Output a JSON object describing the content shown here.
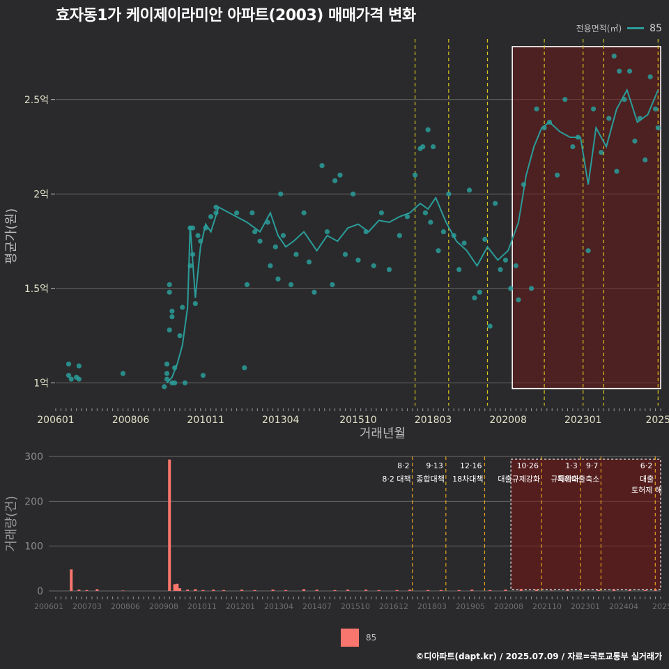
{
  "title": "효자동1가 케이제이라미안 아파트(2003) 매매가격 변화",
  "legend_top": {
    "label": "전용면적(㎡)",
    "value": "85",
    "color": "#2a9d9a"
  },
  "legend_bottom": {
    "value": "85",
    "color": "#f8766d"
  },
  "footer": "©디아파트(dapt.kr) / 2025.07.09 / 자료=국토교통부 실거래가",
  "chart_data": [
    {
      "type": "line",
      "name": "price",
      "xlabel": "거래년월",
      "ylabel": "평균가(원)",
      "x_range": [
        "2006-01",
        "2025-07"
      ],
      "ylim": [
        0.88,
        2.82
      ],
      "y_ticks": [
        {
          "v": 1.0,
          "label": "1억"
        },
        {
          "v": 1.5,
          "label": "1.5억"
        },
        {
          "v": 2.0,
          "label": "2억"
        },
        {
          "v": 2.5,
          "label": "2.5억"
        }
      ],
      "x_ticks": [
        {
          "d": "2006-01",
          "label": "200601"
        },
        {
          "d": "2008-06",
          "label": "200806"
        },
        {
          "d": "2010-11",
          "label": "201011"
        },
        {
          "d": "2013-04",
          "label": "201304"
        },
        {
          "d": "2015-10",
          "label": "201510"
        },
        {
          "d": "2018-03",
          "label": "201803"
        },
        {
          "d": "2020-08",
          "label": "202008"
        },
        {
          "d": "2023-01",
          "label": "202301"
        },
        {
          "d": "2025-06",
          "label": "2025"
        }
      ],
      "highlight_box": {
        "from": "2020-08",
        "to": "2025-07",
        "ymin": 0.97,
        "ymax": 2.78
      },
      "line_points": [
        [
          "2009-08",
          1.0
        ],
        [
          "2009-10",
          1.03
        ],
        [
          "2009-12",
          1.1
        ],
        [
          "2010-02",
          1.2
        ],
        [
          "2010-04",
          1.4
        ],
        [
          "2010-05",
          1.83
        ],
        [
          "2010-07",
          1.45
        ],
        [
          "2010-09",
          1.72
        ],
        [
          "2010-11",
          1.84
        ],
        [
          "2011-01",
          1.8
        ],
        [
          "2011-04",
          1.93
        ],
        [
          "2012-03",
          1.85
        ],
        [
          "2012-08",
          1.8
        ],
        [
          "2012-12",
          1.9
        ],
        [
          "2013-03",
          1.78
        ],
        [
          "2013-06",
          1.72
        ],
        [
          "2013-09",
          1.75
        ],
        [
          "2014-01",
          1.8
        ],
        [
          "2014-06",
          1.7
        ],
        [
          "2014-10",
          1.78
        ],
        [
          "2015-02",
          1.75
        ],
        [
          "2015-06",
          1.82
        ],
        [
          "2015-10",
          1.84
        ],
        [
          "2016-02",
          1.8
        ],
        [
          "2016-06",
          1.86
        ],
        [
          "2016-10",
          1.85
        ],
        [
          "2017-02",
          1.88
        ],
        [
          "2017-06",
          1.9
        ],
        [
          "2017-10",
          1.95
        ],
        [
          "2018-01",
          1.92
        ],
        [
          "2018-04",
          1.98
        ],
        [
          "2018-08",
          1.85
        ],
        [
          "2018-12",
          1.75
        ],
        [
          "2019-04",
          1.7
        ],
        [
          "2019-08",
          1.62
        ],
        [
          "2019-12",
          1.72
        ],
        [
          "2020-04",
          1.65
        ],
        [
          "2020-08",
          1.7
        ],
        [
          "2020-12",
          1.85
        ],
        [
          "2021-03",
          2.1
        ],
        [
          "2021-06",
          2.25
        ],
        [
          "2021-09",
          2.35
        ],
        [
          "2021-12",
          2.38
        ],
        [
          "2022-04",
          2.33
        ],
        [
          "2022-08",
          2.3
        ],
        [
          "2022-12",
          2.3
        ],
        [
          "2023-03",
          2.05
        ],
        [
          "2023-06",
          2.35
        ],
        [
          "2023-10",
          2.25
        ],
        [
          "2024-02",
          2.45
        ],
        [
          "2024-06",
          2.55
        ],
        [
          "2024-10",
          2.38
        ],
        [
          "2025-02",
          2.42
        ],
        [
          "2025-06",
          2.55
        ]
      ],
      "scatter_points": [
        [
          "2006-06",
          1.1
        ],
        [
          "2006-06",
          1.04
        ],
        [
          "2006-07",
          1.02
        ],
        [
          "2006-09",
          1.03
        ],
        [
          "2006-10",
          1.09
        ],
        [
          "2006-10",
          1.02
        ],
        [
          "2008-03",
          1.05
        ],
        [
          "2009-07",
          0.98
        ],
        [
          "2009-08",
          1.05
        ],
        [
          "2009-08",
          1.02
        ],
        [
          "2009-08",
          1.1
        ],
        [
          "2009-09",
          1.28
        ],
        [
          "2009-09",
          1.48
        ],
        [
          "2009-09",
          1.52
        ],
        [
          "2009-10",
          1.35
        ],
        [
          "2009-10",
          1.38
        ],
        [
          "2009-10",
          1.0
        ],
        [
          "2009-11",
          1.0
        ],
        [
          "2009-11",
          1.08
        ],
        [
          "2010-01",
          1.25
        ],
        [
          "2010-02",
          1.4
        ],
        [
          "2010-03",
          1.0
        ],
        [
          "2010-05",
          1.82
        ],
        [
          "2010-05",
          1.62
        ],
        [
          "2010-06",
          1.82
        ],
        [
          "2010-06",
          1.68
        ],
        [
          "2010-07",
          1.42
        ],
        [
          "2010-08",
          1.78
        ],
        [
          "2010-09",
          1.75
        ],
        [
          "2010-10",
          1.04
        ],
        [
          "2010-11",
          1.82
        ],
        [
          "2011-01",
          1.88
        ],
        [
          "2011-03",
          1.93
        ],
        [
          "2011-03",
          1.9
        ],
        [
          "2011-11",
          1.9
        ],
        [
          "2012-02",
          1.08
        ],
        [
          "2012-03",
          1.52
        ],
        [
          "2012-05",
          1.9
        ],
        [
          "2012-06",
          1.8
        ],
        [
          "2012-08",
          1.75
        ],
        [
          "2012-11",
          1.85
        ],
        [
          "2012-12",
          1.62
        ],
        [
          "2013-02",
          1.72
        ],
        [
          "2013-03",
          1.55
        ],
        [
          "2013-04",
          2.0
        ],
        [
          "2013-05",
          1.78
        ],
        [
          "2013-08",
          1.52
        ],
        [
          "2013-10",
          1.68
        ],
        [
          "2014-01",
          1.9
        ],
        [
          "2014-03",
          1.64
        ],
        [
          "2014-05",
          1.48
        ],
        [
          "2014-08",
          2.15
        ],
        [
          "2014-10",
          1.8
        ],
        [
          "2014-12",
          1.52
        ],
        [
          "2015-01",
          2.07
        ],
        [
          "2015-03",
          2.1
        ],
        [
          "2015-05",
          1.68
        ],
        [
          "2015-08",
          2.0
        ],
        [
          "2015-10",
          1.65
        ],
        [
          "2016-01",
          1.8
        ],
        [
          "2016-04",
          1.62
        ],
        [
          "2016-07",
          1.9
        ],
        [
          "2016-10",
          1.6
        ],
        [
          "2017-02",
          1.78
        ],
        [
          "2017-05",
          1.88
        ],
        [
          "2017-08",
          2.1
        ],
        [
          "2017-10",
          2.24
        ],
        [
          "2017-11",
          2.25
        ],
        [
          "2017-12",
          1.9
        ],
        [
          "2018-01",
          2.34
        ],
        [
          "2018-02",
          1.85
        ],
        [
          "2018-03",
          2.25
        ],
        [
          "2018-05",
          1.7
        ],
        [
          "2018-07",
          1.8
        ],
        [
          "2018-09",
          2.0
        ],
        [
          "2018-11",
          1.78
        ],
        [
          "2019-01",
          1.6
        ],
        [
          "2019-03",
          1.74
        ],
        [
          "2019-05",
          2.02
        ],
        [
          "2019-07",
          1.45
        ],
        [
          "2019-09",
          1.48
        ],
        [
          "2019-11",
          1.76
        ],
        [
          "2020-01",
          1.3
        ],
        [
          "2020-03",
          1.95
        ],
        [
          "2020-05",
          1.6
        ],
        [
          "2020-07",
          1.65
        ],
        [
          "2020-09",
          1.5
        ],
        [
          "2020-11",
          1.62
        ],
        [
          "2020-12",
          1.44
        ],
        [
          "2021-02",
          2.05
        ],
        [
          "2021-05",
          1.5
        ],
        [
          "2021-07",
          2.45
        ],
        [
          "2021-10",
          2.35
        ],
        [
          "2021-12",
          2.38
        ],
        [
          "2022-03",
          2.1
        ],
        [
          "2022-06",
          2.5
        ],
        [
          "2022-09",
          2.25
        ],
        [
          "2022-11",
          2.3
        ],
        [
          "2023-03",
          1.7
        ],
        [
          "2023-05",
          2.45
        ],
        [
          "2023-08",
          2.22
        ],
        [
          "2023-11",
          2.4
        ],
        [
          "2024-01",
          2.73
        ],
        [
          "2024-02",
          2.12
        ],
        [
          "2024-03",
          2.65
        ],
        [
          "2024-05",
          2.5
        ],
        [
          "2024-07",
          2.65
        ],
        [
          "2024-09",
          2.28
        ],
        [
          "2024-11",
          2.4
        ],
        [
          "2025-01",
          2.18
        ],
        [
          "2025-03",
          2.62
        ],
        [
          "2025-05",
          2.45
        ],
        [
          "2025-06",
          2.35
        ]
      ],
      "policy_lines": [
        "2017-08",
        "2018-09",
        "2019-12",
        "2021-10",
        "2023-01",
        "2023-09",
        "2025-06"
      ]
    },
    {
      "type": "bar",
      "name": "volume",
      "ylabel": "거래량(건)",
      "ylim": [
        0,
        300
      ],
      "y_ticks": [
        0,
        100,
        200,
        300
      ],
      "x_ticks": [
        "200601",
        "200703",
        "200806",
        "200908",
        "201011",
        "201201",
        "201304",
        "201407",
        "201510",
        "201612",
        "201803",
        "201905",
        "202008",
        "202110",
        "202301",
        "202404",
        "2025"
      ],
      "bars": [
        [
          "2006-07",
          48
        ],
        [
          "2006-10",
          3
        ],
        [
          "2007-01",
          2
        ],
        [
          "2007-05",
          4
        ],
        [
          "2008-03",
          1
        ],
        [
          "2009-09",
          293
        ],
        [
          "2009-11",
          15
        ],
        [
          "2009-12",
          16
        ],
        [
          "2010-01",
          6
        ],
        [
          "2010-04",
          3
        ],
        [
          "2010-07",
          4
        ],
        [
          "2010-10",
          2
        ],
        [
          "2011-02",
          3
        ],
        [
          "2011-06",
          2
        ],
        [
          "2012-01",
          3
        ],
        [
          "2012-06",
          2
        ],
        [
          "2013-01",
          3
        ],
        [
          "2013-06",
          2
        ],
        [
          "2014-01",
          4
        ],
        [
          "2014-06",
          3
        ],
        [
          "2015-01",
          2
        ],
        [
          "2015-06",
          3
        ],
        [
          "2016-01",
          3
        ],
        [
          "2016-06",
          2
        ],
        [
          "2017-01",
          2
        ],
        [
          "2017-06",
          3
        ],
        [
          "2018-01",
          2
        ],
        [
          "2018-06",
          2
        ],
        [
          "2019-01",
          2
        ],
        [
          "2019-06",
          3
        ],
        [
          "2020-01",
          2
        ],
        [
          "2020-07",
          3
        ],
        [
          "2021-01",
          4
        ],
        [
          "2021-07",
          3
        ],
        [
          "2022-01",
          1
        ],
        [
          "2022-07",
          2
        ],
        [
          "2023-01",
          1
        ],
        [
          "2023-07",
          2
        ],
        [
          "2024-01",
          3
        ],
        [
          "2024-07",
          2
        ],
        [
          "2025-01",
          2
        ],
        [
          "2025-05",
          3
        ]
      ],
      "policies": [
        {
          "d": "2017-08",
          "date": "8·2",
          "text": "8·2 대책"
        },
        {
          "d": "2018-09",
          "date": "9·13",
          "text": "종합대책"
        },
        {
          "d": "2019-12",
          "date": "12·16",
          "text": "18차대책"
        },
        {
          "d": "2021-10",
          "date": "10·26",
          "text": "대출규제강화"
        },
        {
          "d": "2023-01",
          "date": "1·3",
          "text": "규제완화"
        },
        {
          "d": "2023-09",
          "date": "9·7",
          "text": "특례대출축소"
        },
        {
          "d": "2025-06",
          "date": "6·2",
          "text": "대출"
        }
      ],
      "policy_extra": [
        "토허제 해"
      ]
    }
  ]
}
